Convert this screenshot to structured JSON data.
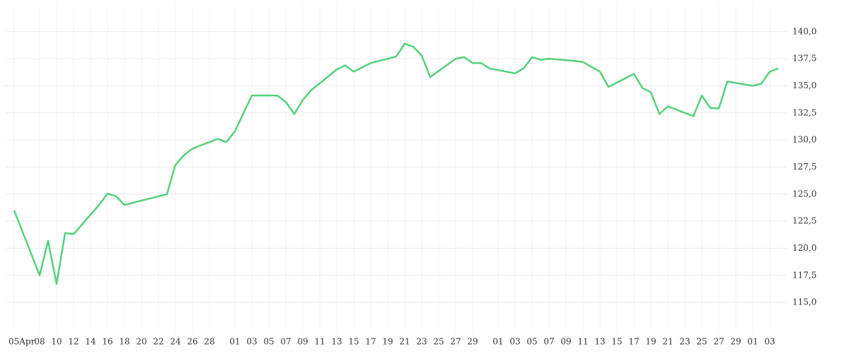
{
  "chart_data": {
    "type": "line",
    "series": [
      {
        "color": "#55d17c",
        "x": [
          0,
          3,
          4,
          5,
          6,
          7,
          10,
          11,
          12,
          13,
          18,
          19,
          20,
          21,
          24,
          25,
          26,
          28,
          31,
          32,
          33,
          34,
          35,
          38,
          39,
          40,
          42,
          45,
          46,
          47,
          48,
          49,
          52,
          53,
          54,
          55,
          56,
          59,
          60,
          61,
          62,
          63,
          66,
          67,
          69,
          70,
          73,
          74,
          75,
          76,
          77,
          80,
          81,
          82,
          83,
          84,
          87,
          88,
          89,
          90
        ],
        "values": [
          123.5,
          117.5,
          120.7,
          116.7,
          121.4,
          121.3,
          124.0,
          125.05,
          124.8,
          124.0,
          125.0,
          127.7,
          128.6,
          129.2,
          130.1,
          129.8,
          130.8,
          134.1,
          134.1,
          133.5,
          132.4,
          133.7,
          134.6,
          136.5,
          136.9,
          136.3,
          137.1,
          137.7,
          138.9,
          138.6,
          137.8,
          135.8,
          137.5,
          137.65,
          137.1,
          137.1,
          136.6,
          136.15,
          136.6,
          137.65,
          137.4,
          137.5,
          137.3,
          137.2,
          136.3,
          134.9,
          136.1,
          134.8,
          134.4,
          132.4,
          133.1,
          132.2,
          134.1,
          132.95,
          132.9,
          135.4,
          135.0,
          135.2,
          136.3,
          136.6
        ]
      }
    ],
    "xlim": [
      -1,
      91
    ],
    "xticks": [
      {
        "value": 0,
        "label": "05Apr"
      },
      {
        "value": 3,
        "label": "08"
      },
      {
        "value": 5,
        "label": "10"
      },
      {
        "value": 7,
        "label": "12"
      },
      {
        "value": 9,
        "label": "14"
      },
      {
        "value": 11,
        "label": "16"
      },
      {
        "value": 13,
        "label": "18"
      },
      {
        "value": 15,
        "label": "20"
      },
      {
        "value": 17,
        "label": "22"
      },
      {
        "value": 19,
        "label": "24"
      },
      {
        "value": 21,
        "label": "26"
      },
      {
        "value": 23,
        "label": "28"
      },
      {
        "value": 26,
        "label": "01"
      },
      {
        "value": 28,
        "label": "03"
      },
      {
        "value": 30,
        "label": "05"
      },
      {
        "value": 32,
        "label": "07"
      },
      {
        "value": 34,
        "label": "09"
      },
      {
        "value": 36,
        "label": "11"
      },
      {
        "value": 38,
        "label": "13"
      },
      {
        "value": 40,
        "label": "15"
      },
      {
        "value": 42,
        "label": "17"
      },
      {
        "value": 44,
        "label": "19"
      },
      {
        "value": 46,
        "label": "21"
      },
      {
        "value": 48,
        "label": "23"
      },
      {
        "value": 50,
        "label": "25"
      },
      {
        "value": 52,
        "label": "27"
      },
      {
        "value": 54,
        "label": "29"
      },
      {
        "value": 57,
        "label": "01"
      },
      {
        "value": 59,
        "label": "03"
      },
      {
        "value": 61,
        "label": "05"
      },
      {
        "value": 63,
        "label": "07"
      },
      {
        "value": 65,
        "label": "09"
      },
      {
        "value": 67,
        "label": "11"
      },
      {
        "value": 69,
        "label": "13"
      },
      {
        "value": 71,
        "label": "15"
      },
      {
        "value": 73,
        "label": "17"
      },
      {
        "value": 75,
        "label": "19"
      },
      {
        "value": 77,
        "label": "21"
      },
      {
        "value": 79,
        "label": "23"
      },
      {
        "value": 81,
        "label": "25"
      },
      {
        "value": 83,
        "label": "27"
      },
      {
        "value": 85,
        "label": "29"
      },
      {
        "value": 87,
        "label": "01"
      },
      {
        "value": 89,
        "label": "03"
      }
    ],
    "ylim": [
      112.4,
      142.4
    ],
    "yticks": [
      {
        "value": 115,
        "label": "115,0"
      },
      {
        "value": 117.5,
        "label": "117,5"
      },
      {
        "value": 120,
        "label": "120,0"
      },
      {
        "value": 122.5,
        "label": "122,5"
      },
      {
        "value": 125,
        "label": "125,0"
      },
      {
        "value": 127.5,
        "label": "127,5"
      },
      {
        "value": 130,
        "label": "130,0"
      },
      {
        "value": 132.5,
        "label": "132,5"
      },
      {
        "value": 135,
        "label": "135,0"
      },
      {
        "value": 137.5,
        "label": "137,5"
      },
      {
        "value": 140,
        "label": "140,0"
      }
    ],
    "grid": true
  }
}
